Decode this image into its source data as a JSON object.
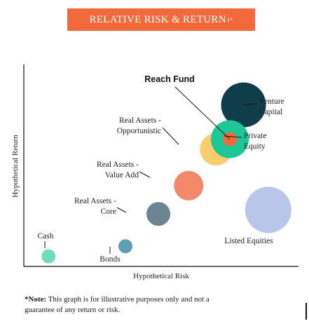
{
  "title": {
    "main": "RELATIVE RISK & RETURN",
    "superscript": "1*"
  },
  "note": {
    "prefix": "*Note:",
    "text": " This graph is for illustrative purposes only and not a guarantee of any return or risk."
  },
  "colors": {
    "banner": "#f26a3b",
    "cash": "#6fdcc0",
    "bonds": "#5d9fb3",
    "real_assets_core": "#6c8592",
    "real_assets_value_add": "#f4896a",
    "real_assets_opportunistic": "#f9cd6e",
    "private_equity": "#1ec795",
    "reach_fund": "#f26a3b",
    "venture_capital": "#0f3d4a",
    "listed_equities": "#b9c6ea"
  },
  "chart_data": {
    "type": "scatter",
    "title": "RELATIVE RISK & RETURN",
    "xlabel": "Hypothetical Risk",
    "ylabel": "Hypothetical Return",
    "xlim": [
      0,
      10
    ],
    "ylim": [
      0,
      10
    ],
    "grid": false,
    "points": [
      {
        "name": "Cash",
        "x": 0.9,
        "y": 0.5,
        "size": 1.0
      },
      {
        "name": "Bonds",
        "x": 3.7,
        "y": 1.0,
        "size": 1.0
      },
      {
        "name": "Real Assets - Core",
        "x": 4.9,
        "y": 2.6,
        "size": 1.7
      },
      {
        "name": "Real Assets - Value Add",
        "x": 6.0,
        "y": 4.0,
        "size": 2.1
      },
      {
        "name": "Real Assets - Opportunistic",
        "x": 7.0,
        "y": 5.8,
        "size": 2.3
      },
      {
        "name": "Private Equity",
        "x": 7.5,
        "y": 6.3,
        "size": 2.7
      },
      {
        "name": "Reach Fund",
        "x": 7.5,
        "y": 6.3,
        "size": 1.0
      },
      {
        "name": "Venture Capital",
        "x": 8.0,
        "y": 8.0,
        "size": 3.2
      },
      {
        "name": "Listed Equities",
        "x": 8.9,
        "y": 2.8,
        "size": 3.3
      }
    ],
    "labels": {
      "cash": "Cash",
      "bonds": "Bonds",
      "core": [
        "Real Assets -",
        "Core"
      ],
      "value_add": [
        "Real Assets -",
        "Value Add"
      ],
      "opportunistic": [
        "Real Assets -",
        "Opportunistic"
      ],
      "private_equity": [
        "Private",
        "Equity"
      ],
      "venture_capital": [
        "Venture",
        "Capital"
      ],
      "listed_equities": "Listed Equities",
      "reach_fund": "Reach Fund"
    }
  }
}
